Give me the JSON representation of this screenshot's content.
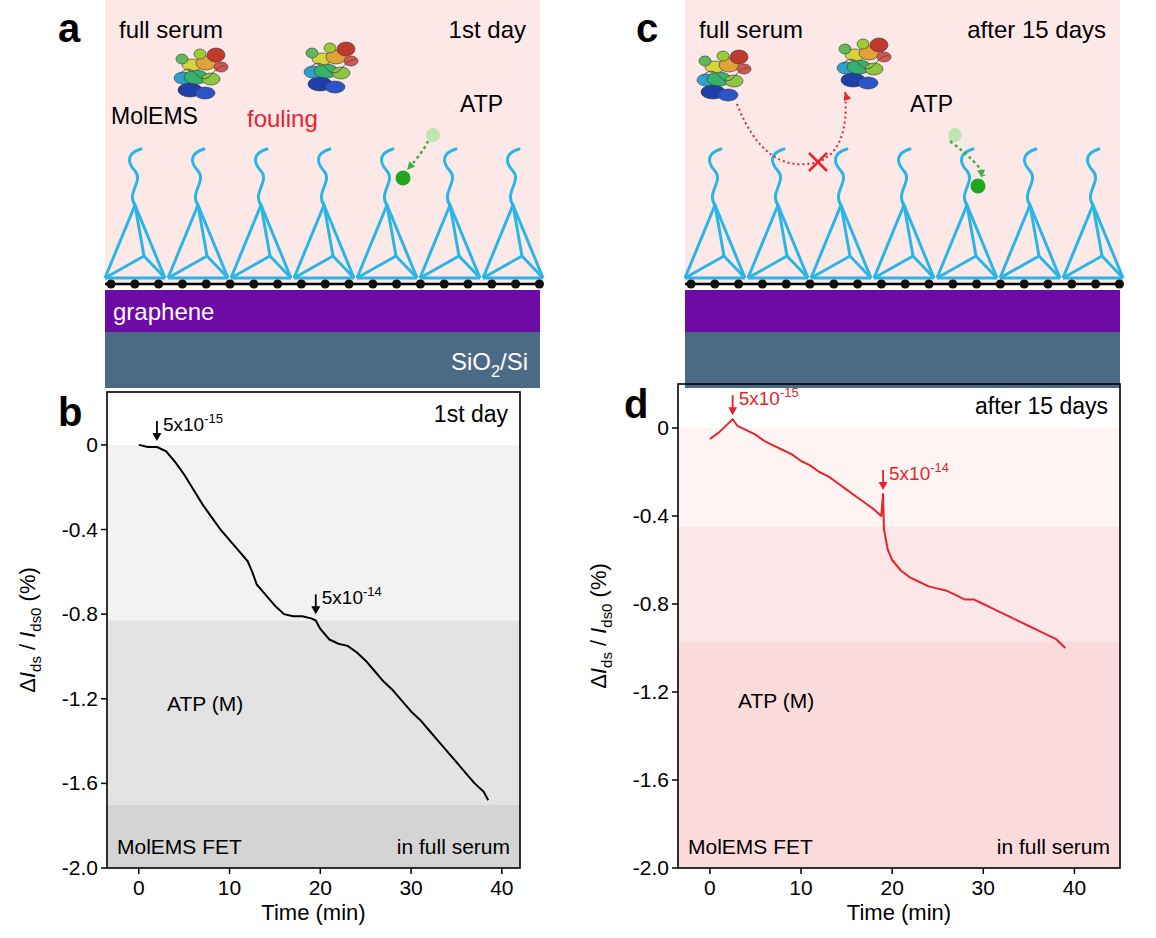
{
  "panel_letters": [
    "a",
    "b",
    "c",
    "d"
  ],
  "diagrams": [
    {
      "medium": "full serum",
      "day": "1st day",
      "molecule": "MolEMS",
      "fouling": "fouling",
      "target": "ATP",
      "layer": "graphene",
      "substrate": "SiO2/Si"
    },
    {
      "medium": "full serum",
      "day": "after 15 days",
      "target": "ATP"
    }
  ],
  "chart_data": [
    {
      "type": "line",
      "title": "1st day",
      "x_label": "Time (min)",
      "y_label": "ΔIds / Ids0 (%)",
      "xlim": [
        -3.5,
        42
      ],
      "xticks": [
        0,
        10,
        20,
        30,
        40
      ],
      "ylim": [
        -2,
        0.25
      ],
      "yticks": [
        0,
        -0.4,
        -0.8,
        -1.2,
        -1.6,
        {
          "value": -2,
          "label": "-2.0"
        }
      ],
      "grid": false,
      "x": [
        0,
        1,
        2,
        3,
        4,
        5,
        6,
        7,
        8,
        9,
        10,
        11,
        12,
        12.5,
        13,
        14,
        15,
        16,
        17,
        18,
        19,
        19.5,
        20,
        21,
        22,
        23,
        24,
        25,
        26,
        27,
        28,
        29,
        30,
        31,
        32,
        33,
        34,
        35,
        36,
        37,
        38,
        38.5
      ],
      "series": [
        {
          "color": "#000000",
          "values": [
            0,
            -0.01,
            -0.01,
            -0.03,
            -0.08,
            -0.14,
            -0.21,
            -0.28,
            -0.34,
            -0.4,
            -0.45,
            -0.5,
            -0.55,
            -0.6,
            -0.66,
            -0.71,
            -0.76,
            -0.8,
            -0.81,
            -0.81,
            -0.82,
            -0.83,
            -0.87,
            -0.92,
            -0.94,
            -0.95,
            -0.98,
            -1.02,
            -1.07,
            -1.12,
            -1.16,
            -1.21,
            -1.26,
            -1.3,
            -1.35,
            -1.4,
            -1.45,
            -1.5,
            -1.55,
            -1.6,
            -1.64,
            -1.68
          ]
        }
      ],
      "bands": [
        [
          0,
          -0.83
        ],
        [
          -0.83,
          -1.7
        ],
        [
          -1.7,
          -2
        ]
      ],
      "annotations": [
        {
          "x": 2,
          "y": 0,
          "text": "5x10",
          "exponent": "-15"
        },
        {
          "x": 19.5,
          "y": -0.82,
          "text": "5x10",
          "exponent": "-14"
        }
      ],
      "labels": {
        "unit": "ATP (M)",
        "device": "MolEMS FET",
        "medium": "in full serum"
      }
    },
    {
      "type": "line",
      "title": "after 15 days",
      "x_label": "Time (min)",
      "y_label": "ΔIds / Ids0 (%)",
      "xlim": [
        -3.5,
        45
      ],
      "xticks": [
        0,
        10,
        20,
        30,
        40
      ],
      "ylim": [
        -2,
        0.2
      ],
      "yticks": [
        0,
        -0.4,
        -0.8,
        -1.2,
        -1.6,
        {
          "value": -2,
          "label": "-2.0"
        }
      ],
      "grid": false,
      "x": [
        0,
        1,
        2,
        2.5,
        3,
        4,
        5,
        6,
        7,
        8,
        9,
        10,
        11,
        12,
        13,
        14,
        15,
        16,
        17,
        18,
        18.8,
        19,
        19.1,
        19.5,
        20,
        21,
        22,
        23,
        24,
        25,
        26,
        27,
        28,
        29,
        30,
        31,
        32,
        33,
        34,
        35,
        36,
        37,
        38,
        39
      ],
      "series": [
        {
          "color": "#e8242a",
          "values": [
            -0.05,
            -0.02,
            0.02,
            0.04,
            0.01,
            -0.01,
            -0.03,
            -0.06,
            -0.08,
            -0.1,
            -0.12,
            -0.15,
            -0.17,
            -0.2,
            -0.22,
            -0.25,
            -0.28,
            -0.31,
            -0.34,
            -0.37,
            -0.4,
            -0.3,
            -0.46,
            -0.55,
            -0.6,
            -0.65,
            -0.68,
            -0.7,
            -0.72,
            -0.73,
            -0.74,
            -0.76,
            -0.78,
            -0.78,
            -0.8,
            -0.82,
            -0.84,
            -0.86,
            -0.88,
            -0.9,
            -0.92,
            -0.94,
            -0.96,
            -1.0
          ]
        }
      ],
      "bands": [
        [
          0,
          -0.45
        ],
        [
          -0.45,
          -0.97
        ],
        [
          -0.97,
          -2
        ]
      ],
      "annotations": [
        {
          "x": 2.5,
          "y": 0.04,
          "text": "5x10",
          "exponent": "-15"
        },
        {
          "x": 19,
          "y": -0.3,
          "text": "5x10",
          "exponent": "-14"
        }
      ],
      "labels": {
        "unit": "ATP (M)",
        "device": "MolEMS FET",
        "medium": "in full serum"
      }
    }
  ]
}
